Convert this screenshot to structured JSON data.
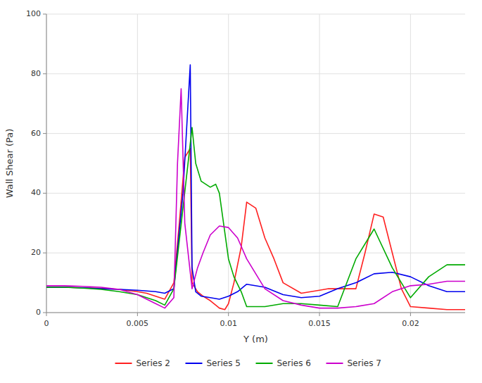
{
  "chart_data": {
    "type": "line",
    "xlabel": "Y (m)",
    "ylabel": "Wall Shear (Pa)",
    "xlim": [
      0,
      0.023
    ],
    "ylim": [
      0,
      100
    ],
    "xticks": [
      0,
      0.005,
      0.01,
      0.015,
      0.02
    ],
    "yticks": [
      0,
      20,
      40,
      60,
      80,
      100
    ],
    "grid": true,
    "legend": "bottom",
    "series": [
      {
        "name": "Series 2",
        "color": "#ff2020",
        "x": [
          0,
          0.001,
          0.002,
          0.003,
          0.004,
          0.005,
          0.0055,
          0.006,
          0.0065,
          0.007,
          0.0073,
          0.0076,
          0.0079,
          0.008,
          0.0083,
          0.0086,
          0.009,
          0.0093,
          0.0095,
          0.0098,
          0.01,
          0.0103,
          0.0107,
          0.011,
          0.0115,
          0.012,
          0.0125,
          0.013,
          0.014,
          0.015,
          0.0155,
          0.016,
          0.017,
          0.0175,
          0.018,
          0.0185,
          0.019,
          0.0195,
          0.02,
          0.021,
          0.022,
          0.023
        ],
        "values": [
          8.5,
          8.5,
          8.3,
          8.1,
          7.8,
          7.0,
          6.5,
          5.5,
          4.5,
          10.0,
          30.0,
          52.0,
          55.0,
          10.0,
          7.0,
          5.5,
          4.0,
          2.5,
          1.5,
          1.0,
          3.0,
          10.0,
          22.0,
          37.0,
          35.0,
          25.0,
          18.0,
          10.0,
          6.5,
          7.5,
          8.0,
          8.0,
          8.0,
          20.0,
          33.0,
          32.0,
          20.0,
          8.0,
          2.0,
          1.5,
          1.0,
          1.0
        ]
      },
      {
        "name": "Series 5",
        "color": "#0000ee",
        "x": [
          0,
          0.001,
          0.002,
          0.003,
          0.004,
          0.005,
          0.006,
          0.0065,
          0.007,
          0.0075,
          0.0079,
          0.008,
          0.0082,
          0.0085,
          0.009,
          0.0095,
          0.01,
          0.0105,
          0.011,
          0.012,
          0.013,
          0.014,
          0.015,
          0.016,
          0.017,
          0.018,
          0.019,
          0.02,
          0.021,
          0.022,
          0.023
        ],
        "values": [
          8.5,
          8.5,
          8.3,
          8.0,
          7.8,
          7.5,
          7.0,
          6.5,
          8.0,
          40.0,
          83.0,
          15.0,
          7.0,
          5.5,
          5.0,
          4.5,
          5.5,
          7.0,
          9.5,
          8.5,
          6.0,
          5.0,
          5.5,
          8.0,
          10.0,
          13.0,
          13.5,
          12.0,
          9.0,
          7.0,
          7.0
        ]
      },
      {
        "name": "Series 6",
        "color": "#00aa00",
        "x": [
          0,
          0.001,
          0.002,
          0.003,
          0.004,
          0.005,
          0.006,
          0.0065,
          0.007,
          0.0075,
          0.008,
          0.0082,
          0.0085,
          0.009,
          0.0093,
          0.0095,
          0.01,
          0.0103,
          0.0107,
          0.011,
          0.012,
          0.013,
          0.014,
          0.015,
          0.016,
          0.017,
          0.018,
          0.019,
          0.02,
          0.021,
          0.022,
          0.023
        ],
        "values": [
          8.5,
          8.5,
          8.2,
          7.8,
          7.0,
          6.0,
          4.0,
          2.5,
          8.0,
          35.0,
          62.0,
          50.0,
          44.0,
          42.0,
          43.0,
          40.0,
          18.0,
          12.0,
          7.0,
          2.0,
          2.0,
          3.0,
          3.0,
          2.5,
          2.0,
          18.0,
          28.0,
          15.0,
          5.0,
          12.0,
          16.0,
          16.0
        ]
      },
      {
        "name": "Series 7",
        "color": "#cc00cc",
        "x": [
          0,
          0.001,
          0.002,
          0.003,
          0.004,
          0.005,
          0.006,
          0.0065,
          0.007,
          0.0072,
          0.0074,
          0.0076,
          0.008,
          0.0083,
          0.0086,
          0.009,
          0.0095,
          0.01,
          0.0105,
          0.011,
          0.012,
          0.013,
          0.014,
          0.015,
          0.016,
          0.017,
          0.018,
          0.019,
          0.02,
          0.021,
          0.022,
          0.023
        ],
        "values": [
          9.0,
          9.0,
          8.8,
          8.5,
          7.8,
          6.0,
          3.0,
          1.5,
          5.0,
          50.0,
          75.0,
          30.0,
          8.0,
          15.0,
          20.0,
          26.0,
          29.0,
          28.5,
          25.0,
          18.0,
          8.0,
          4.0,
          2.5,
          1.5,
          1.5,
          2.0,
          3.0,
          7.0,
          9.0,
          9.5,
          10.5,
          10.5
        ]
      }
    ]
  }
}
